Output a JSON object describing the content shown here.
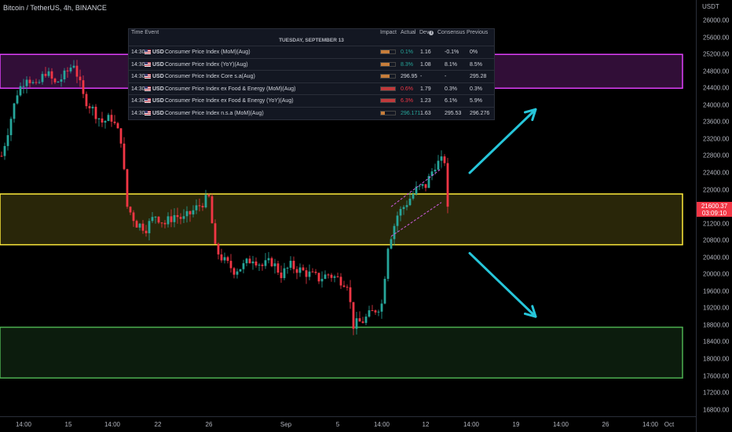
{
  "header": {
    "title": "Bitcoin / TetherUS, 4h, BINANCE",
    "currency": "USDT"
  },
  "price_tag": {
    "price": "21600.37",
    "countdown": "03:09:10"
  },
  "colors": {
    "up": "#26a69a",
    "down": "#f23645",
    "zone_top": "#e040fb",
    "zone_mid": "#ffeb3b",
    "zone_bottom": "#4caf50",
    "arrow": "#26c6da",
    "channel": "#d05ce3"
  },
  "events": {
    "headers": {
      "time_event": "Time Event",
      "impact": "Impact",
      "actual": "Actual",
      "dev": "Dev",
      "consensus": "Consensus",
      "previous": "Previous"
    },
    "date": "TUESDAY, SEPTEMBER 13",
    "rows": [
      {
        "time": "14:30",
        "country": "USD",
        "event": "Consumer Price Index (MoM)(Aug)",
        "impact": 0.6,
        "impact_color": "#c77d3a",
        "actual": "0.1%",
        "actual_color": "#26a69a",
        "dev": "1.16",
        "consensus": "-0.1%",
        "previous": "0%"
      },
      {
        "time": "14:30",
        "country": "USD",
        "event": "Consumer Price Index (YoY)(Aug)",
        "impact": 0.6,
        "impact_color": "#c77d3a",
        "actual": "8.3%",
        "actual_color": "#26a69a",
        "dev": "1.08",
        "consensus": "8.1%",
        "previous": "8.5%"
      },
      {
        "time": "14:30",
        "country": "USD",
        "event": "Consumer Price Index Core s.a(Aug)",
        "impact": 0.6,
        "impact_color": "#c77d3a",
        "actual": "296.95",
        "actual_color": "#d1d4dc",
        "dev": "-",
        "consensus": "-",
        "previous": "295.28"
      },
      {
        "time": "14:30",
        "country": "USD",
        "event": "Consumer Price Index ex Food & Energy (MoM)(Aug)",
        "impact": 1.0,
        "impact_color": "#c0393b",
        "actual": "0.6%",
        "actual_color": "#f23645",
        "dev": "1.79",
        "consensus": "0.3%",
        "previous": "0.3%"
      },
      {
        "time": "14:30",
        "country": "USD",
        "event": "Consumer Price Index ex Food & Energy (YoY)(Aug)",
        "impact": 1.0,
        "impact_color": "#c0393b",
        "actual": "6.3%",
        "actual_color": "#f23645",
        "dev": "1.23",
        "consensus": "6.1%",
        "previous": "5.9%"
      },
      {
        "time": "14:30",
        "country": "USD",
        "event": "Consumer Price Index n.s.a (MoM)(Aug)",
        "impact": 0.3,
        "impact_color": "#c77d3a",
        "actual": "296.171",
        "actual_color": "#26a69a",
        "dev": "1.63",
        "consensus": "295.53",
        "previous": "296.276"
      }
    ]
  },
  "chart_data": {
    "type": "candlestick",
    "title": "Bitcoin / TetherUS, 4h, BINANCE",
    "ylabel": "USDT",
    "ylim": [
      16600,
      26500
    ],
    "y_ticks": [
      26000,
      25600,
      25200,
      24800,
      24400,
      24000,
      23600,
      23200,
      22800,
      22400,
      22000,
      21600,
      21200,
      20800,
      20400,
      20000,
      19600,
      19200,
      18800,
      18400,
      18000,
      17600,
      17200,
      16800
    ],
    "x_ticks": [
      {
        "label": "14:00",
        "at": "Aug 13 14:00"
      },
      {
        "label": "15",
        "at": "Aug 15"
      },
      {
        "label": "14:00",
        "at": "Aug 19 14:00"
      },
      {
        "label": "22",
        "at": "Aug 22"
      },
      {
        "label": "26",
        "at": "Aug 26"
      },
      {
        "label": "Sep",
        "at": "Sep 1"
      },
      {
        "label": "5",
        "at": "Sep 5"
      },
      {
        "label": "14:00",
        "at": "Sep 8 14:00"
      },
      {
        "label": "12",
        "at": "Sep 12"
      },
      {
        "label": "14:00",
        "at": "Sep 15 14:00"
      },
      {
        "label": "19",
        "at": "Sep 19"
      },
      {
        "label": "14:00",
        "at": "Sep 22 14:00"
      },
      {
        "label": "26",
        "at": "Sep 26"
      },
      {
        "label": "14:00",
        "at": "Sep 29 14:00"
      },
      {
        "label": "Oct",
        "at": "Oct 1"
      }
    ],
    "path": [
      [
        0,
        22800
      ],
      [
        2,
        23400
      ],
      [
        5,
        24300
      ],
      [
        8,
        24700
      ],
      [
        11,
        24400
      ],
      [
        14,
        24800
      ],
      [
        17,
        24500
      ],
      [
        20,
        24700
      ],
      [
        23,
        25000
      ],
      [
        26,
        24200
      ],
      [
        29,
        23900
      ],
      [
        32,
        23600
      ],
      [
        35,
        23700
      ],
      [
        38,
        23200
      ],
      [
        40,
        21600
      ],
      [
        43,
        21200
      ],
      [
        46,
        21100
      ],
      [
        49,
        21400
      ],
      [
        52,
        21200
      ],
      [
        55,
        21400
      ],
      [
        58,
        21300
      ],
      [
        61,
        21500
      ],
      [
        64,
        21700
      ],
      [
        66,
        21800
      ],
      [
        68,
        20600
      ],
      [
        71,
        20300
      ],
      [
        74,
        20100
      ],
      [
        77,
        20200
      ],
      [
        80,
        20400
      ],
      [
        83,
        20200
      ],
      [
        86,
        20300
      ],
      [
        89,
        20000
      ],
      [
        92,
        20200
      ],
      [
        95,
        20100
      ],
      [
        98,
        20000
      ],
      [
        101,
        19900
      ],
      [
        104,
        20000
      ],
      [
        107,
        19900
      ],
      [
        110,
        19800
      ],
      [
        112,
        18800
      ],
      [
        115,
        18900
      ],
      [
        118,
        19100
      ],
      [
        121,
        19300
      ],
      [
        123,
        20700
      ],
      [
        126,
        21400
      ],
      [
        129,
        21700
      ],
      [
        132,
        22000
      ],
      [
        135,
        22100
      ],
      [
        138,
        22600
      ],
      [
        141,
        22700
      ],
      [
        142,
        21600
      ]
    ],
    "series_count_candles": 143,
    "zones": [
      {
        "top": 25200,
        "bottom": 24400,
        "color_key": "zone_top"
      },
      {
        "top": 21900,
        "bottom": 20700,
        "color_key": "zone_mid"
      },
      {
        "top": 18750,
        "bottom": 17550,
        "color_key": "zone_bottom"
      }
    ],
    "arrows": [
      {
        "from": [
          149,
          22400
        ],
        "to": [
          170,
          23900
        ]
      },
      {
        "from": [
          149,
          20500
        ],
        "to": [
          170,
          19000
        ]
      }
    ],
    "channel": {
      "lower": [
        [
          124,
          20900
        ],
        [
          140,
          21700
        ]
      ],
      "upper": [
        [
          124,
          21600
        ],
        [
          140,
          22500
        ]
      ]
    }
  }
}
